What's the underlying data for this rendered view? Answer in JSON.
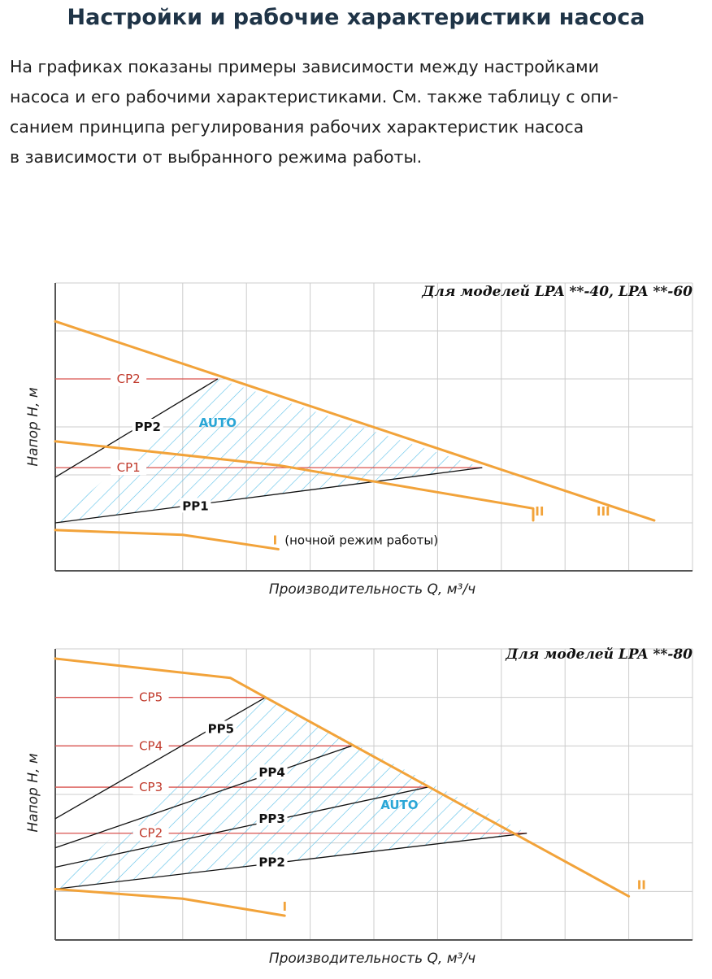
{
  "header": {
    "title": "Настройки и рабочие характеристики насоса",
    "intro_lines": [
      "На графиках показаны примеры зависимости между настройками",
      "насоса и его рабочими характеристиками. См. также таблицу с опи-",
      "санием принципа регулирования рабочих характеристик насоса",
      "в зависимости от выбранного режима работы."
    ]
  },
  "colors": {
    "curve": "#f2a33a",
    "cp_line": "#d9534f",
    "cp_text": "#c0392b",
    "pp_line": "#111111",
    "auto_text": "#2aa6d6",
    "hatch": "#5bc0e8",
    "grid": "#cccccc",
    "axis": "#555555"
  },
  "chart_data": [
    {
      "type": "line",
      "model_label": "Для моделей LPA **-40, LPA **-60",
      "xlabel": "Производительность Q, м³/ч",
      "ylabel": "Напор H, м",
      "xlim": [
        0,
        10
      ],
      "ylim": [
        0,
        6
      ],
      "grid": true,
      "auto_label": "AUTO",
      "auto_region": [
        [
          0,
          1.0
        ],
        [
          2.55,
          4.0
        ],
        [
          6.7,
          2.15
        ]
      ],
      "curves": [
        {
          "name": "III",
          "points": [
            [
              0,
              5.2
            ],
            [
              9.4,
              1.05
            ]
          ]
        },
        {
          "name": "II",
          "points": [
            [
              0,
              2.7
            ],
            [
              3.5,
              2.2
            ],
            [
              7.5,
              1.3
            ],
            [
              7.5,
              1.05
            ]
          ]
        },
        {
          "name": "I",
          "points": [
            [
              0,
              0.85
            ],
            [
              2.0,
              0.75
            ],
            [
              3.5,
              0.45
            ]
          ],
          "note": "(ночной режим работы)"
        }
      ],
      "cp_lines": [
        {
          "name": "CP2",
          "y": 4.0,
          "x_end": 2.55
        },
        {
          "name": "CP1",
          "y": 2.15,
          "x_end": 6.7
        }
      ],
      "pp_lines": [
        {
          "name": "PP2",
          "points": [
            [
              0,
              1.95
            ],
            [
              2.55,
              4.0
            ]
          ]
        },
        {
          "name": "PP1",
          "points": [
            [
              0,
              1.0
            ],
            [
              6.7,
              2.15
            ]
          ]
        }
      ]
    },
    {
      "type": "line",
      "model_label": "Для моделей LPA **-80",
      "xlabel": "Производительность Q, м³/ч",
      "ylabel": "Напор H, м",
      "xlim": [
        0,
        10
      ],
      "ylim": [
        0,
        6
      ],
      "grid": true,
      "auto_label": "AUTO",
      "auto_region": [
        [
          0,
          1.05
        ],
        [
          3.3,
          5.0
        ],
        [
          7.4,
          2.2
        ]
      ],
      "curves": [
        {
          "name": "II",
          "points": [
            [
              0,
              5.8
            ],
            [
              2.75,
              5.4
            ],
            [
              3.3,
              5.0
            ],
            [
              9.0,
              0.9
            ]
          ]
        },
        {
          "name": "I",
          "points": [
            [
              0,
              1.05
            ],
            [
              2.0,
              0.85
            ],
            [
              3.6,
              0.5
            ]
          ]
        }
      ],
      "cp_lines": [
        {
          "name": "CP5",
          "y": 5.0,
          "x_end": 3.3
        },
        {
          "name": "CP4",
          "y": 4.0,
          "x_end": 4.65
        },
        {
          "name": "CP3",
          "y": 3.15,
          "x_end": 5.85
        },
        {
          "name": "CP2",
          "y": 2.2,
          "x_end": 7.4
        }
      ],
      "pp_lines": [
        {
          "name": "PP5",
          "points": [
            [
              0,
              2.5
            ],
            [
              3.3,
              5.0
            ]
          ]
        },
        {
          "name": "PP4",
          "points": [
            [
              0,
              1.9
            ],
            [
              4.65,
              4.0
            ]
          ]
        },
        {
          "name": "PP3",
          "points": [
            [
              0,
              1.5
            ],
            [
              5.85,
              3.15
            ]
          ]
        },
        {
          "name": "PP2",
          "points": [
            [
              0,
              1.05
            ],
            [
              7.4,
              2.2
            ]
          ]
        }
      ]
    }
  ]
}
